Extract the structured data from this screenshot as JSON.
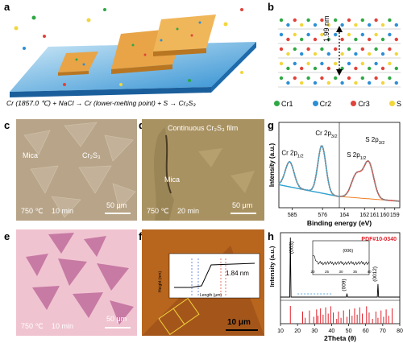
{
  "panels": {
    "a": {
      "label": "a",
      "equation": "Cr (1857.0 ℃) + NaCl → Cr (lower-melting point) + S → Cr₂S₃"
    },
    "b": {
      "label": "b",
      "spacing": "1.99 nm",
      "legend": [
        {
          "name": "Cr1",
          "color": "#2fa845"
        },
        {
          "name": "Cr2",
          "color": "#2c8fd6"
        },
        {
          "name": "Cr3",
          "color": "#e0433a"
        },
        {
          "name": "S",
          "color": "#f1d63c"
        }
      ]
    },
    "c": {
      "label": "c",
      "mica": "Mica",
      "film": "Cr₂S₃",
      "temp": "750 ℃",
      "time": "10 min",
      "scale": "50 μm"
    },
    "d": {
      "label": "d",
      "film": "Continuous Cr₂S₃ film",
      "mica": "Mica",
      "temp": "750 ℃",
      "time": "20 min",
      "scale": "50 μm"
    },
    "e": {
      "label": "e",
      "temp": "750 ℃",
      "time": "10 min",
      "scale": "50 μm"
    },
    "f": {
      "label": "f",
      "thickness": "1.84 nm",
      "inset_ylabel": "Height (nm)",
      "inset_xlabel": "Length (μm)",
      "scale": "10 μm"
    },
    "g": {
      "label": "g"
    },
    "h": {
      "label": "h"
    }
  },
  "chart_data": [
    {
      "type": "line",
      "panel": "g",
      "xlabel": "Binding energy (eV)",
      "ylabel": "Intensity (a.u.)",
      "xlim": [
        585,
        159
      ],
      "segments": [
        {
          "ticks": [
            585,
            576
          ]
        },
        {
          "ticks": [
            164,
            162,
            161,
            160,
            159
          ]
        }
      ],
      "peaks": [
        {
          "name": "Cr 2p1/2",
          "label": "Cr 2p1/2",
          "x": 585.8
        },
        {
          "name": "Cr 2p3/2",
          "label": "Cr 2p3/2",
          "x": 576.2
        },
        {
          "name": "S 2p1/2",
          "label": "S 2p1/2",
          "x": 162.8
        },
        {
          "name": "S 2p3/2",
          "label": "S 2p3/2",
          "x": 161.6
        }
      ],
      "colors": {
        "data": "#8a8a8a",
        "fit": "#e0433a",
        "cr": "#2ba3d6",
        "background": "#f07b22"
      }
    },
    {
      "type": "line",
      "panel": "h",
      "xlabel": "2Theta (θ)",
      "ylabel": "Intensity (a.u.)",
      "xlim": [
        10,
        80
      ],
      "x_ticks": [
        10,
        20,
        30,
        40,
        50,
        60,
        70,
        80
      ],
      "reference": "PDF#10-0340",
      "peaks": [
        {
          "label": "(003)",
          "x": 15.8,
          "y": 1.0
        },
        {
          "label": "(009)",
          "x": 49.0,
          "y": 0.06
        },
        {
          "label": "(0012)",
          "x": 67.2,
          "y": 0.22
        }
      ],
      "inset": {
        "label": "(006)",
        "x_ticks": [
          20,
          25,
          30,
          35,
          40
        ],
        "peak_x": 32.5
      },
      "reference_lines": [
        15.8,
        23,
        24.5,
        27,
        29.5,
        31.2,
        32,
        33.5,
        35,
        36.5,
        38,
        39.5,
        41,
        43,
        44,
        45.5,
        47,
        49,
        50.5,
        52,
        53.5,
        55,
        56.5,
        58,
        60.5,
        62,
        64,
        66,
        67.2,
        69,
        70.5,
        72,
        73.5,
        75.5
      ],
      "colors": {
        "pattern": "#000000",
        "reference": "#e0202a"
      }
    }
  ]
}
